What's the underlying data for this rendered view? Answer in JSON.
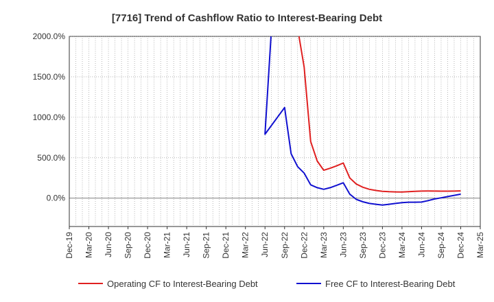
{
  "chart_data": {
    "type": "line",
    "title": "[7716]  Trend of Cashflow Ratio to Interest-Bearing Debt",
    "xlabel": "",
    "ylabel": "",
    "ylim": [
      -350,
      2000
    ],
    "yticks": [
      2000,
      1500,
      1000,
      500,
      0
    ],
    "ytick_labels": [
      "2000.0%",
      "1500.0%",
      "1000.0%",
      "500.0%",
      "0.0%"
    ],
    "xticks": [
      "Dec-19",
      "Mar-20",
      "Jun-20",
      "Sep-20",
      "Dec-20",
      "Mar-21",
      "Jun-21",
      "Sep-21",
      "Dec-21",
      "Mar-22",
      "Jun-22",
      "Sep-22",
      "Dec-22",
      "Mar-23",
      "Jun-23",
      "Sep-23",
      "Dec-23",
      "Mar-24",
      "Jun-24",
      "Sep-24",
      "Dec-24",
      "Mar-25"
    ],
    "grid": true,
    "legend_position": "bottom",
    "series": [
      {
        "name": "Operating CF to Interest-Bearing Debt",
        "color": "#e02020",
        "points": [
          [
            "Nov-22",
            2100
          ],
          [
            "Dec-22",
            1620
          ],
          [
            "Jan-23",
            700
          ],
          [
            "Feb-23",
            460
          ],
          [
            "Mar-23",
            345
          ],
          [
            "Apr-23",
            370
          ],
          [
            "May-23",
            400
          ],
          [
            "Jun-23",
            435
          ],
          [
            "Jul-23",
            250
          ],
          [
            "Aug-23",
            175
          ],
          [
            "Sep-23",
            135
          ],
          [
            "Oct-23",
            110
          ],
          [
            "Nov-23",
            95
          ],
          [
            "Dec-23",
            85
          ],
          [
            "Jan-24",
            80
          ],
          [
            "Feb-24",
            78
          ],
          [
            "Mar-24",
            77
          ],
          [
            "Apr-24",
            80
          ],
          [
            "May-24",
            84
          ],
          [
            "Jun-24",
            88
          ],
          [
            "Jul-24",
            89
          ],
          [
            "Aug-24",
            88
          ],
          [
            "Sep-24",
            87
          ],
          [
            "Oct-24",
            87
          ],
          [
            "Nov-24",
            88
          ],
          [
            "Dec-24",
            90
          ]
        ]
      },
      {
        "name": "Free CF to Interest-Bearing Debt",
        "color": "#1010d0",
        "points": [
          [
            "Jul-22",
            2100
          ],
          [
            "Jun-22",
            790
          ],
          [
            "Sep-22",
            1120
          ],
          [
            "Oct-22",
            550
          ],
          [
            "Nov-22",
            390
          ],
          [
            "Dec-22",
            310
          ],
          [
            "Jan-23",
            165
          ],
          [
            "Feb-23",
            130
          ],
          [
            "Mar-23",
            110
          ],
          [
            "Apr-23",
            130
          ],
          [
            "May-23",
            160
          ],
          [
            "Jun-23",
            190
          ],
          [
            "Jul-23",
            50
          ],
          [
            "Aug-23",
            -15
          ],
          [
            "Sep-23",
            -45
          ],
          [
            "Oct-23",
            -65
          ],
          [
            "Nov-23",
            -75
          ],
          [
            "Dec-23",
            -85
          ],
          [
            "Jan-24",
            -75
          ],
          [
            "Feb-24",
            -65
          ],
          [
            "Mar-24",
            -55
          ],
          [
            "Apr-24",
            -50
          ],
          [
            "May-24",
            -50
          ],
          [
            "Jun-24",
            -48
          ],
          [
            "Jul-24",
            -30
          ],
          [
            "Aug-24",
            -10
          ],
          [
            "Sep-24",
            5
          ],
          [
            "Oct-24",
            20
          ],
          [
            "Nov-24",
            35
          ],
          [
            "Dec-24",
            50
          ]
        ]
      }
    ]
  }
}
